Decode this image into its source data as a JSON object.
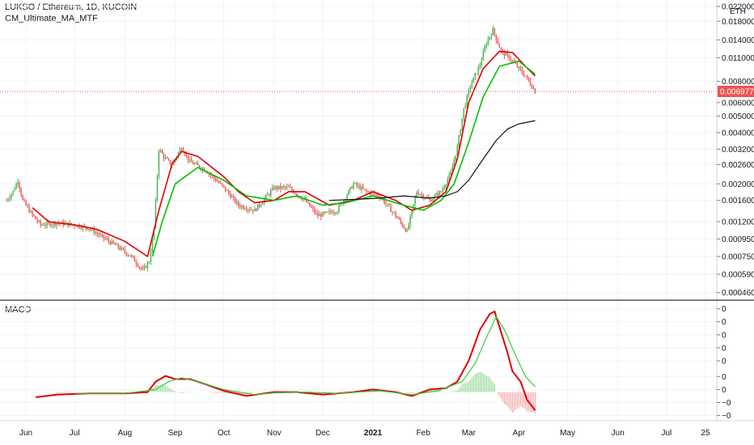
{
  "header": {
    "symbol_line": "LUKSO / Ethereum, 1D, KUCOIN",
    "indicator_line": "CM_Ultimate_MA_MTF",
    "macd_label": "MACD",
    "currency": "ETH"
  },
  "colors": {
    "up": "#4caf50",
    "down": "#ef5350",
    "ma_short": "#e00000",
    "ma_green": "#00c000",
    "ma_long": "#111111",
    "macd_line": "#e00000",
    "signal_line": "#3ec93e",
    "price_badge": "#ef5350",
    "grid": "#f0f3fa"
  },
  "chart_data": [
    {
      "type": "candlestick",
      "name": "price",
      "title": "LUKSO / Ethereum, 1D, KUCOIN",
      "scale": "log",
      "y_ticks": [
        "0.0220000",
        "0.0180000",
        "0.0140000",
        "0.0110000",
        "0.0080000",
        "0.0060000",
        "0.0050000",
        "0.0040000",
        "0.0032000",
        "0.0026000",
        "0.0020000",
        "0.0016000",
        "0.0012000",
        "0.0009500",
        "0.0007500",
        "0.0005900",
        "0.0004600"
      ],
      "y_tick_values": [
        0.022,
        0.018,
        0.014,
        0.011,
        0.008,
        0.006,
        0.005,
        0.004,
        0.0032,
        0.0026,
        0.002,
        0.0016,
        0.0012,
        0.00095,
        0.00075,
        0.00059,
        0.00046
      ],
      "ylim": [
        0.00042,
        0.024
      ],
      "last_price_label": "0.0069774",
      "last_price": 0.0069774,
      "x_tick_labels": [
        "Jun",
        "Jul",
        "Aug",
        "Sep",
        "Oct",
        "Nov",
        "Dec",
        "2021",
        "Feb",
        "Mar",
        "Apr",
        "May",
        "Jun",
        "Jul",
        "25"
      ],
      "x_tick_dates": [
        "2020-06-01",
        "2020-07-01",
        "2020-08-01",
        "2020-09-01",
        "2020-10-01",
        "2020-11-01",
        "2020-12-01",
        "2021-01-01",
        "2021-02-01",
        "2021-03-01",
        "2021-04-01",
        "2021-05-01",
        "2021-06-01",
        "2021-07-01",
        "2021-07-25"
      ],
      "xlim": [
        "2020-05-16",
        "2021-08-01"
      ],
      "close_path": [
        [
          "2020-05-20",
          0.0016
        ],
        [
          "2020-05-24",
          0.0018
        ],
        [
          "2020-05-27",
          0.0021
        ],
        [
          "2020-05-30",
          0.0016
        ],
        [
          "2020-06-04",
          0.00135
        ],
        [
          "2020-06-10",
          0.00115
        ],
        [
          "2020-06-20",
          0.00118
        ],
        [
          "2020-07-01",
          0.00115
        ],
        [
          "2020-07-10",
          0.0011
        ],
        [
          "2020-07-20",
          0.00095
        ],
        [
          "2020-07-28",
          0.00085
        ],
        [
          "2020-08-05",
          0.00075
        ],
        [
          "2020-08-12",
          0.00062
        ],
        [
          "2020-08-16",
          0.0007
        ],
        [
          "2020-08-19",
          0.0011
        ],
        [
          "2020-08-22",
          0.0032
        ],
        [
          "2020-08-26",
          0.0028
        ],
        [
          "2020-08-30",
          0.0026
        ],
        [
          "2020-09-05",
          0.0033
        ],
        [
          "2020-09-10",
          0.0027
        ],
        [
          "2020-09-20",
          0.0024
        ],
        [
          "2020-10-01",
          0.0019
        ],
        [
          "2020-10-10",
          0.0015
        ],
        [
          "2020-10-20",
          0.0014
        ],
        [
          "2020-11-01",
          0.0019
        ],
        [
          "2020-11-10",
          0.0019
        ],
        [
          "2020-11-20",
          0.0016
        ],
        [
          "2020-11-28",
          0.0013
        ],
        [
          "2020-12-10",
          0.0014
        ],
        [
          "2020-12-20",
          0.002
        ],
        [
          "2020-12-28",
          0.0018
        ],
        [
          "2021-01-05",
          0.0017
        ],
        [
          "2021-01-15",
          0.0013
        ],
        [
          "2021-01-22",
          0.00105
        ],
        [
          "2021-01-28",
          0.0018
        ],
        [
          "2021-02-05",
          0.0016
        ],
        [
          "2021-02-12",
          0.0018
        ],
        [
          "2021-02-18",
          0.0023
        ],
        [
          "2021-02-22",
          0.0033
        ],
        [
          "2021-02-26",
          0.0055
        ],
        [
          "2021-03-02",
          0.0075
        ],
        [
          "2021-03-08",
          0.01
        ],
        [
          "2021-03-12",
          0.0135
        ],
        [
          "2021-03-16",
          0.016
        ],
        [
          "2021-03-21",
          0.012
        ],
        [
          "2021-03-26",
          0.011
        ],
        [
          "2021-04-01",
          0.0095
        ],
        [
          "2021-04-06",
          0.0083
        ],
        [
          "2021-04-11",
          0.0069774
        ]
      ]
    },
    {
      "type": "line",
      "name": "moving_averages",
      "series": [
        {
          "key": "ma_short",
          "points": [
            [
              "2020-06-05",
              0.00145
            ],
            [
              "2020-06-15",
              0.0012
            ],
            [
              "2020-07-01",
              0.00115
            ],
            [
              "2020-07-15",
              0.00108
            ],
            [
              "2020-08-01",
              0.00092
            ],
            [
              "2020-08-15",
              0.00075
            ],
            [
              "2020-08-22",
              0.0014
            ],
            [
              "2020-08-30",
              0.0026
            ],
            [
              "2020-09-05",
              0.0031
            ],
            [
              "2020-09-15",
              0.0029
            ],
            [
              "2020-10-01",
              0.0022
            ],
            [
              "2020-10-10",
              0.0018
            ],
            [
              "2020-10-20",
              0.00155
            ],
            [
              "2020-11-01",
              0.0016
            ],
            [
              "2020-11-10",
              0.0018
            ],
            [
              "2020-11-20",
              0.0018
            ],
            [
              "2020-12-05",
              0.0015
            ],
            [
              "2020-12-20",
              0.0016
            ],
            [
              "2021-01-01",
              0.0018
            ],
            [
              "2021-01-15",
              0.0016
            ],
            [
              "2021-01-25",
              0.0014
            ],
            [
              "2021-02-05",
              0.0015
            ],
            [
              "2021-02-15",
              0.0018
            ],
            [
              "2021-02-22",
              0.0028
            ],
            [
              "2021-03-01",
              0.006
            ],
            [
              "2021-03-10",
              0.0095
            ],
            [
              "2021-03-20",
              0.012
            ],
            [
              "2021-03-28",
              0.0118
            ],
            [
              "2021-04-05",
              0.0098
            ],
            [
              "2021-04-11",
              0.0086
            ]
          ]
        },
        {
          "key": "ma_green",
          "points": [
            [
              "2020-08-18",
              0.00075
            ],
            [
              "2020-08-24",
              0.0012
            ],
            [
              "2020-09-01",
              0.002
            ],
            [
              "2020-09-15",
              0.0025
            ],
            [
              "2020-10-01",
              0.0021
            ],
            [
              "2020-10-15",
              0.0017
            ],
            [
              "2020-11-01",
              0.0016
            ],
            [
              "2020-11-15",
              0.0017
            ],
            [
              "2020-12-01",
              0.0015
            ],
            [
              "2020-12-15",
              0.00155
            ],
            [
              "2021-01-01",
              0.0017
            ],
            [
              "2021-01-20",
              0.0015
            ],
            [
              "2021-02-01",
              0.0014
            ],
            [
              "2021-02-12",
              0.0016
            ],
            [
              "2021-02-20",
              0.002
            ],
            [
              "2021-03-01",
              0.0035
            ],
            [
              "2021-03-10",
              0.0065
            ],
            [
              "2021-03-20",
              0.0098
            ],
            [
              "2021-04-01",
              0.0105
            ],
            [
              "2021-04-11",
              0.0088
            ]
          ]
        },
        {
          "key": "ma_long",
          "points": [
            [
              "2020-12-05",
              0.0016
            ],
            [
              "2020-12-20",
              0.00162
            ],
            [
              "2021-01-05",
              0.00165
            ],
            [
              "2021-01-20",
              0.0017
            ],
            [
              "2021-02-05",
              0.00165
            ],
            [
              "2021-02-15",
              0.0017
            ],
            [
              "2021-02-22",
              0.0018
            ],
            [
              "2021-03-01",
              0.0021
            ],
            [
              "2021-03-10",
              0.0028
            ],
            [
              "2021-03-18",
              0.0036
            ],
            [
              "2021-03-25",
              0.0042
            ],
            [
              "2021-04-01",
              0.0045
            ],
            [
              "2021-04-11",
              0.0047
            ]
          ]
        }
      ]
    },
    {
      "type": "line",
      "name": "macd",
      "title": "MACD",
      "y_ticks": [
        "0",
        "0",
        "0",
        "0",
        "0",
        "0",
        "0",
        "−0",
        "−0"
      ],
      "y_tick_values": [
        0.0032,
        0.0027,
        0.0022,
        0.0017,
        0.0012,
        0.0006,
        0.0001,
        -0.0004,
        -0.0009
      ],
      "ylim": [
        -0.0011,
        0.0035
      ],
      "series": [
        {
          "key": "macd_line",
          "points": [
            [
              "2020-06-07",
              -0.0002
            ],
            [
              "2020-06-20",
              -0.0001
            ],
            [
              "2020-07-10",
              -5e-05
            ],
            [
              "2020-08-01",
              -5e-05
            ],
            [
              "2020-08-15",
              0.0
            ],
            [
              "2020-08-20",
              0.0004
            ],
            [
              "2020-08-26",
              0.00062
            ],
            [
              "2020-09-01",
              0.0005
            ],
            [
              "2020-09-10",
              0.0005
            ],
            [
              "2020-09-20",
              0.0003
            ],
            [
              "2020-10-01",
              5e-05
            ],
            [
              "2020-10-15",
              -0.00015
            ],
            [
              "2020-11-01",
              0.0
            ],
            [
              "2020-11-15",
              0.0
            ],
            [
              "2020-12-01",
              -0.0001
            ],
            [
              "2020-12-20",
              0.0
            ],
            [
              "2021-01-01",
              0.0001
            ],
            [
              "2021-01-15",
              0.0
            ],
            [
              "2021-01-25",
              -0.00015
            ],
            [
              "2021-02-05",
              0.0001
            ],
            [
              "2021-02-15",
              0.00015
            ],
            [
              "2021-02-22",
              0.0004
            ],
            [
              "2021-03-01",
              0.0012
            ],
            [
              "2021-03-08",
              0.0024
            ],
            [
              "2021-03-14",
              0.003
            ],
            [
              "2021-03-17",
              0.0031
            ],
            [
              "2021-03-20",
              0.0025
            ],
            [
              "2021-03-25",
              0.0015
            ],
            [
              "2021-03-28",
              0.0008
            ],
            [
              "2021-04-02",
              0.0004
            ],
            [
              "2021-04-06",
              -0.0003
            ],
            [
              "2021-04-11",
              -0.0007
            ]
          ]
        },
        {
          "key": "signal_line",
          "points": [
            [
              "2020-07-01",
              -5e-05
            ],
            [
              "2020-08-01",
              -5e-05
            ],
            [
              "2020-08-20",
              0.0001
            ],
            [
              "2020-08-28",
              0.0004
            ],
            [
              "2020-09-05",
              0.00055
            ],
            [
              "2020-09-15",
              0.0004
            ],
            [
              "2020-10-01",
              0.0001
            ],
            [
              "2020-10-20",
              -0.0001
            ],
            [
              "2020-11-01",
              -3e-05
            ],
            [
              "2020-11-20",
              0.0
            ],
            [
              "2020-12-10",
              -5e-05
            ],
            [
              "2021-01-05",
              5e-05
            ],
            [
              "2021-01-25",
              -0.0001
            ],
            [
              "2021-02-10",
              5e-05
            ],
            [
              "2021-02-25",
              0.0004
            ],
            [
              "2021-03-05",
              0.0011
            ],
            [
              "2021-03-12",
              0.0021
            ],
            [
              "2021-03-18",
              0.0029
            ],
            [
              "2021-03-23",
              0.0024
            ],
            [
              "2021-03-30",
              0.0014
            ],
            [
              "2021-04-05",
              0.0006
            ],
            [
              "2021-04-11",
              0.0002
            ]
          ]
        }
      ]
    }
  ]
}
